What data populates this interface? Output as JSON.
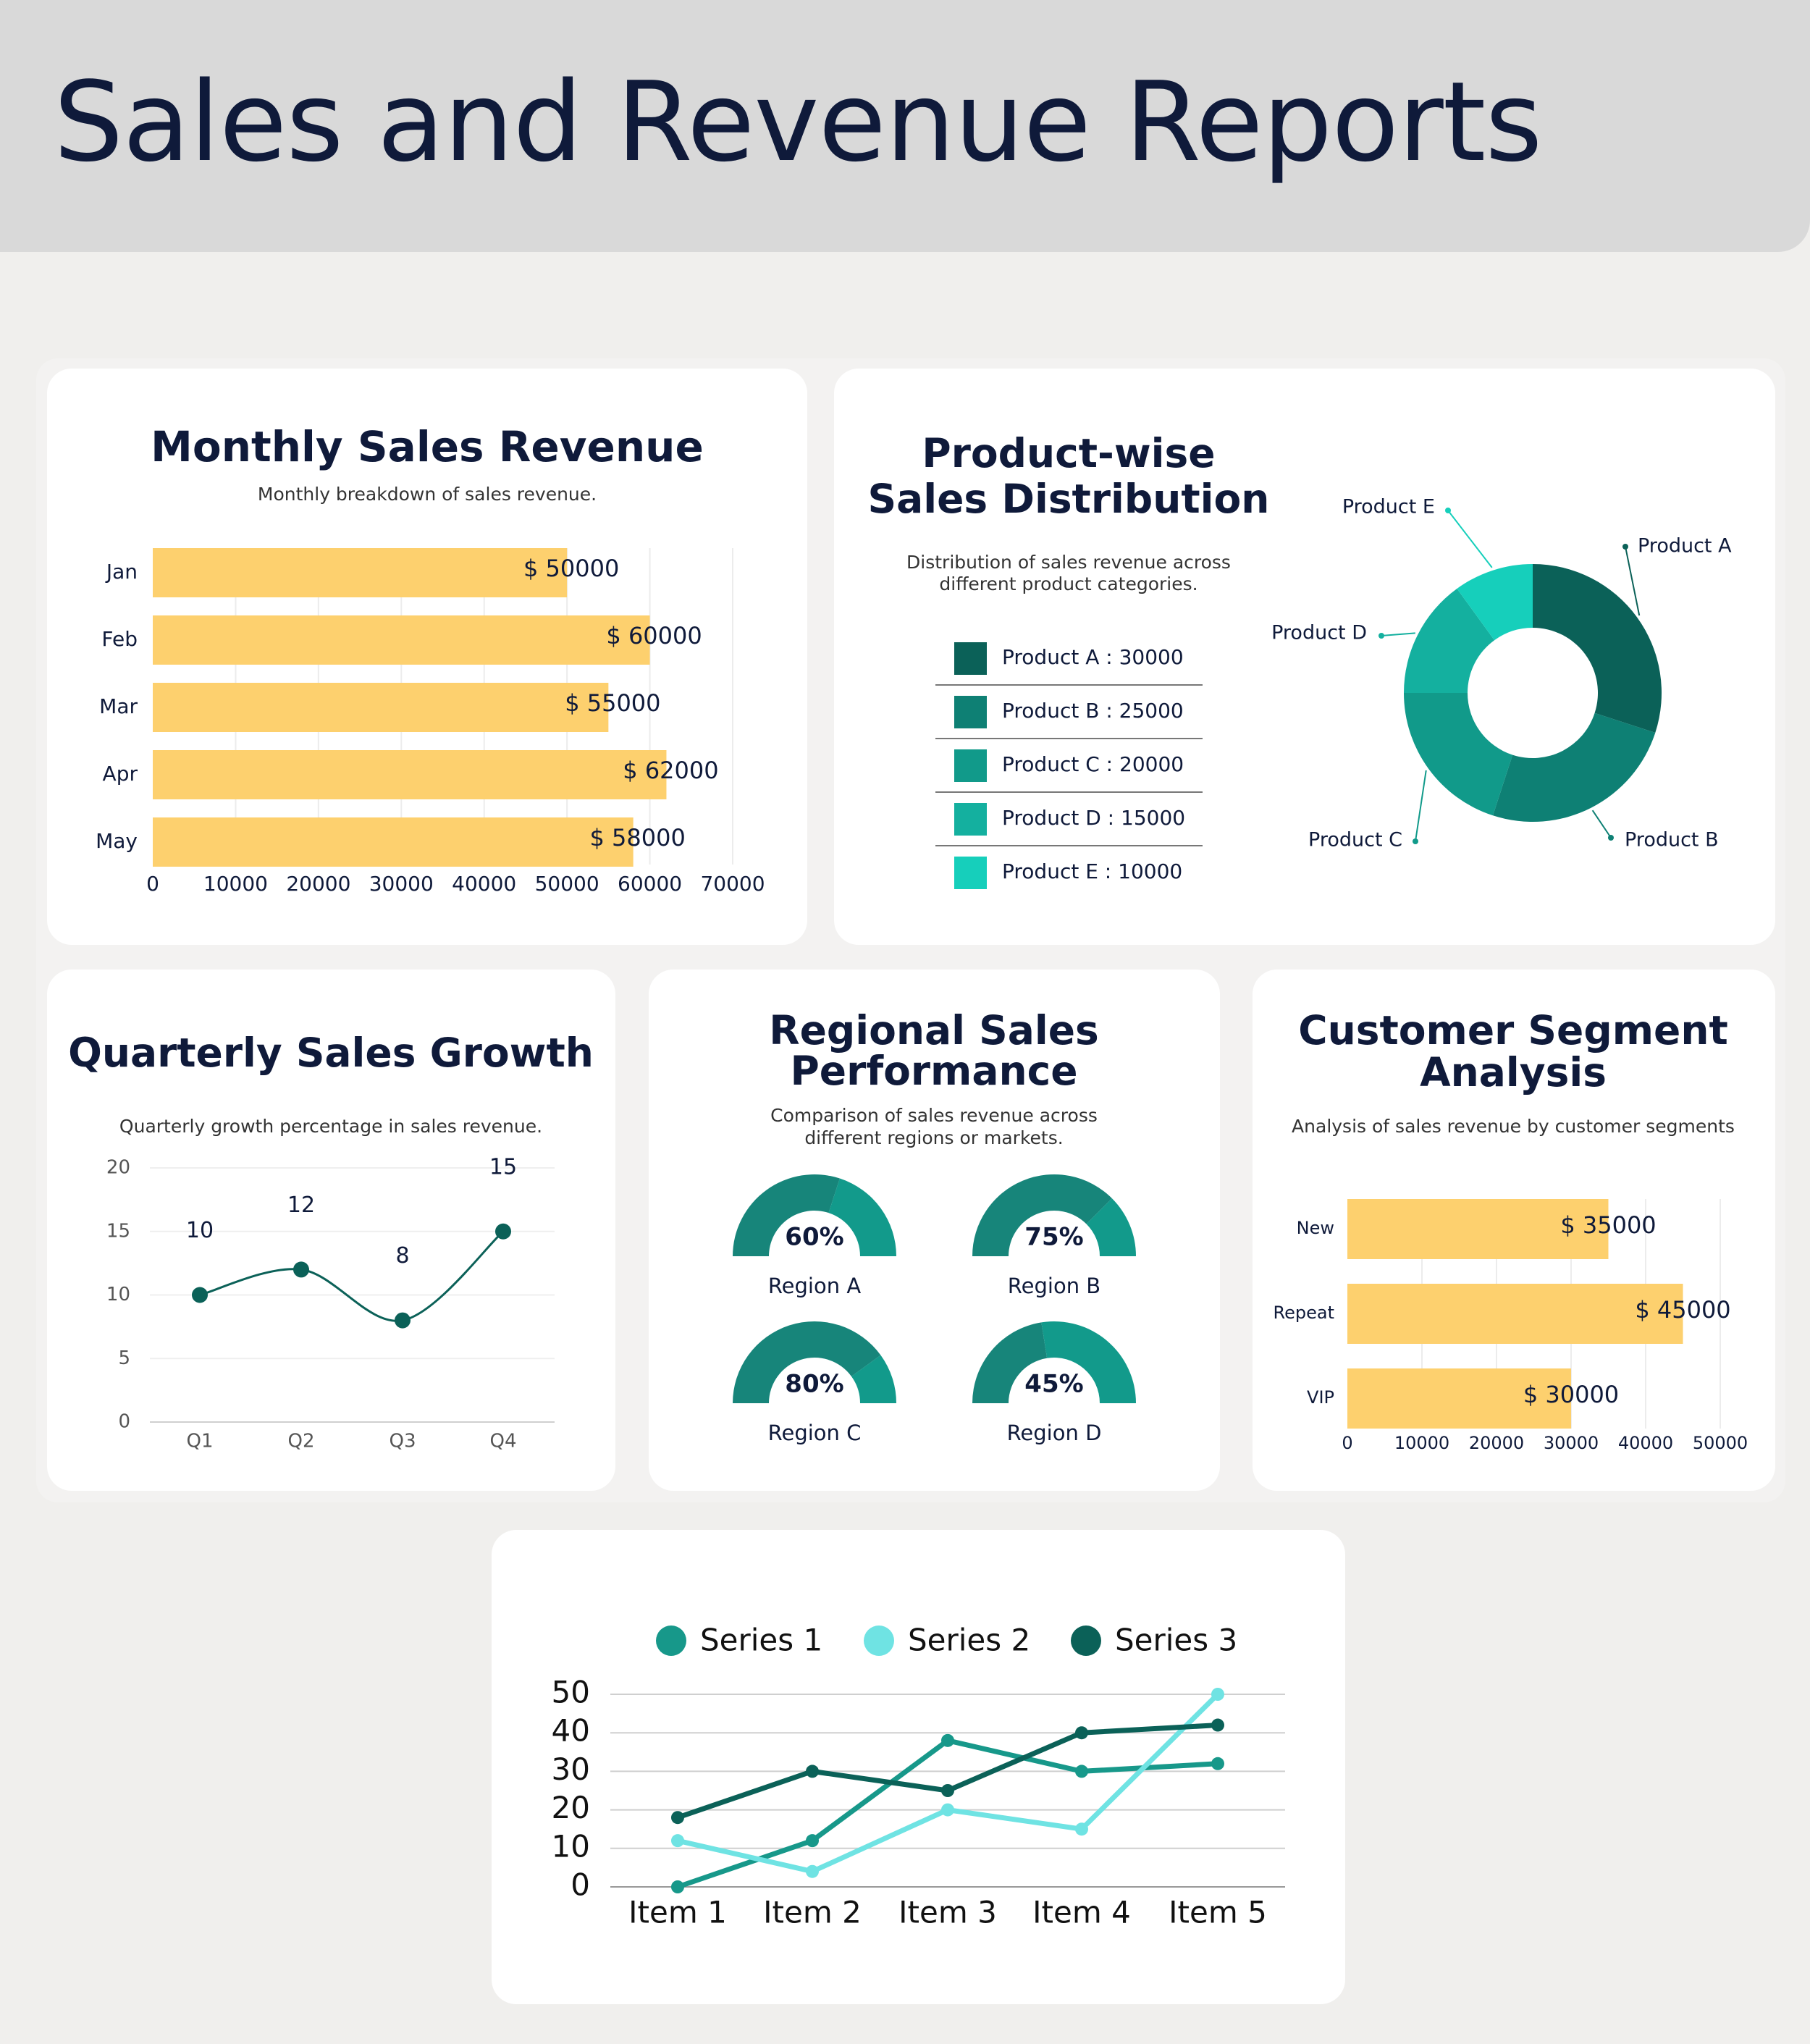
{
  "header": {
    "title": "Sales and Revenue Reports"
  },
  "colors": {
    "bar": "#fdd06e",
    "teal_dark": "#0b6158",
    "gauge_fill": "#17857a",
    "gauge_rest": "#129a8b",
    "text": "#0f1a3a"
  },
  "chart_data": [
    {
      "id": "monthly",
      "type": "bar",
      "orientation": "horizontal",
      "title": "Monthly Sales Revenue",
      "subtitle": "Monthly breakdown of sales revenue.",
      "categories": [
        "Jan",
        "Feb",
        "Mar",
        "Apr",
        "May"
      ],
      "values": [
        50000,
        60000,
        55000,
        62000,
        58000
      ],
      "value_labels": [
        "$ 50000",
        "$ 60000",
        "$ 55000",
        "$ 62000",
        "$ 58000"
      ],
      "xlim": [
        0,
        70000
      ],
      "xticks": [
        "0",
        "10000",
        "20000",
        "30000",
        "40000",
        "50000",
        "60000",
        "70000"
      ],
      "grid": true
    },
    {
      "id": "product",
      "type": "pie",
      "donut": true,
      "title_lines": [
        "Product-wise",
        "Sales Distribution"
      ],
      "subtitle_lines": [
        "Distribution of sales revenue across",
        "different product categories."
      ],
      "labels": [
        "Product A",
        "Product B",
        "Product C",
        "Product D",
        "Product E"
      ],
      "values": [
        30000,
        25000,
        20000,
        15000,
        10000
      ],
      "legend": [
        "Product A : 30000",
        "Product B : 25000",
        "Product C : 20000",
        "Product D : 15000",
        "Product E : 10000"
      ],
      "colors": [
        "#0b6158",
        "#0e8074",
        "#119a8a",
        "#14b09f",
        "#16cfbb"
      ]
    },
    {
      "id": "quarterly",
      "type": "line",
      "title": "Quarterly Sales Growth",
      "subtitle": "Quarterly growth percentage in sales revenue.",
      "categories": [
        "Q1",
        "Q2",
        "Q3",
        "Q4"
      ],
      "values": [
        10,
        12,
        8,
        15
      ],
      "value_labels": [
        "10",
        "12",
        "8",
        "15"
      ],
      "ylim": [
        0,
        20
      ],
      "yticks": [
        "0",
        "5",
        "10",
        "15",
        "20"
      ],
      "smooth": true
    },
    {
      "id": "regional",
      "type": "gauge",
      "title_lines": [
        "Regional Sales",
        "Performance"
      ],
      "subtitle_lines": [
        "Comparison of sales revenue across",
        "different regions or markets."
      ],
      "labels": [
        "Region A",
        "Region B",
        "Region C",
        "Region D"
      ],
      "values": [
        60,
        75,
        80,
        45
      ],
      "value_labels": [
        "60%",
        "75%",
        "80%",
        "45%"
      ]
    },
    {
      "id": "segment",
      "type": "bar",
      "orientation": "horizontal",
      "title_lines": [
        "Customer Segment",
        "Analysis"
      ],
      "subtitle": "Analysis of sales revenue by customer segments",
      "categories": [
        "New",
        "Repeat",
        "VIP"
      ],
      "values": [
        35000,
        45000,
        30000
      ],
      "value_labels": [
        "$ 35000",
        "$ 45000",
        "$ 30000"
      ],
      "xlim": [
        0,
        50000
      ],
      "xticks": [
        "0",
        "10000",
        "20000",
        "30000",
        "40000",
        "50000"
      ],
      "grid": true
    },
    {
      "id": "series",
      "type": "line",
      "categories": [
        "Item 1",
        "Item 2",
        "Item 3",
        "Item 4",
        "Item 5"
      ],
      "series": [
        {
          "name": "Series 1",
          "color": "#17988a",
          "values": [
            0,
            12,
            38,
            30,
            32
          ]
        },
        {
          "name": "Series 2",
          "color": "#6fe3e3",
          "values": [
            12,
            4,
            20,
            15,
            50
          ]
        },
        {
          "name": "Series 3",
          "color": "#0b6158",
          "values": [
            18,
            30,
            25,
            40,
            42
          ]
        }
      ],
      "ylim": [
        0,
        50
      ],
      "yticks": [
        "0",
        "10",
        "20",
        "30",
        "40",
        "50"
      ],
      "legend_position": "top"
    }
  ]
}
